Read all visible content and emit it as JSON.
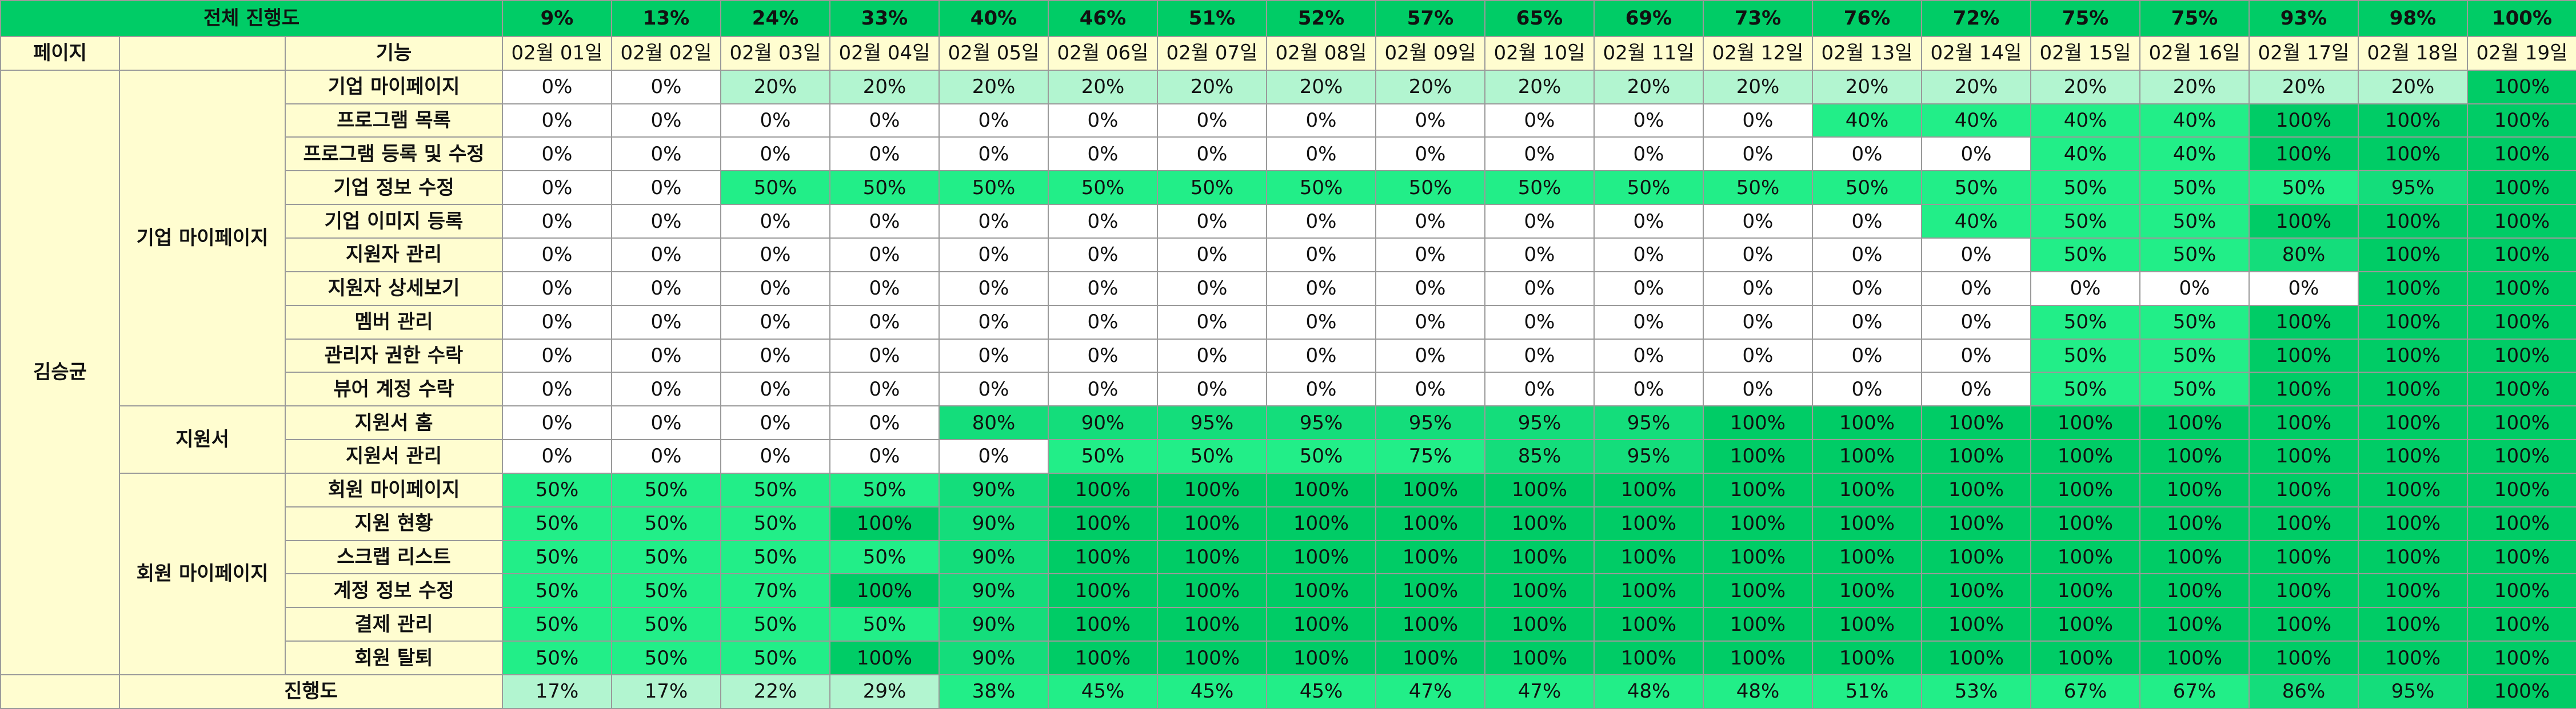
{
  "sheet": {
    "overall_label": "전체 진행도",
    "overall_values": [
      "9%",
      "13%",
      "24%",
      "33%",
      "40%",
      "46%",
      "51%",
      "52%",
      "57%",
      "65%",
      "69%",
      "73%",
      "76%",
      "72%",
      "75%",
      "75%",
      "93%",
      "98%",
      "100%"
    ],
    "header": {
      "page_label": "페이지",
      "feature_label": "기능",
      "dates": [
        "02월 01일",
        "02월 02일",
        "02월 03일",
        "02월 04일",
        "02월 05일",
        "02월 06일",
        "02월 07일",
        "02월 08일",
        "02월 09일",
        "02월 10일",
        "02월 11일",
        "02월 12일",
        "02월 13일",
        "02월 14일",
        "02월 15일",
        "02월 16일",
        "02월 17일",
        "02월 18일",
        "02월 19일"
      ]
    },
    "owner": "김승균",
    "groups": [
      {
        "name": "기업 마이페이지",
        "rows": [
          {
            "feature": "기업 마이페이지",
            "values": [
              "0%",
              "0%",
              "20%",
              "20%",
              "20%",
              "20%",
              "20%",
              "20%",
              "20%",
              "20%",
              "20%",
              "20%",
              "20%",
              "20%",
              "20%",
              "20%",
              "20%",
              "20%",
              "100%"
            ]
          },
          {
            "feature": "프로그램 목록",
            "values": [
              "0%",
              "0%",
              "0%",
              "0%",
              "0%",
              "0%",
              "0%",
              "0%",
              "0%",
              "0%",
              "0%",
              "0%",
              "40%",
              "40%",
              "40%",
              "40%",
              "100%",
              "100%",
              "100%"
            ]
          },
          {
            "feature": "프로그램 등록 및 수정",
            "values": [
              "0%",
              "0%",
              "0%",
              "0%",
              "0%",
              "0%",
              "0%",
              "0%",
              "0%",
              "0%",
              "0%",
              "0%",
              "0%",
              "0%",
              "40%",
              "40%",
              "100%",
              "100%",
              "100%"
            ]
          },
          {
            "feature": "기업 정보 수정",
            "values": [
              "0%",
              "0%",
              "50%",
              "50%",
              "50%",
              "50%",
              "50%",
              "50%",
              "50%",
              "50%",
              "50%",
              "50%",
              "50%",
              "50%",
              "50%",
              "50%",
              "50%",
              "95%",
              "100%"
            ]
          },
          {
            "feature": "기업 이미지 등록",
            "values": [
              "0%",
              "0%",
              "0%",
              "0%",
              "0%",
              "0%",
              "0%",
              "0%",
              "0%",
              "0%",
              "0%",
              "0%",
              "0%",
              "40%",
              "50%",
              "50%",
              "100%",
              "100%",
              "100%"
            ]
          },
          {
            "feature": "지원자 관리",
            "values": [
              "0%",
              "0%",
              "0%",
              "0%",
              "0%",
              "0%",
              "0%",
              "0%",
              "0%",
              "0%",
              "0%",
              "0%",
              "0%",
              "0%",
              "50%",
              "50%",
              "80%",
              "100%",
              "100%"
            ]
          },
          {
            "feature": "지원자 상세보기",
            "values": [
              "0%",
              "0%",
              "0%",
              "0%",
              "0%",
              "0%",
              "0%",
              "0%",
              "0%",
              "0%",
              "0%",
              "0%",
              "0%",
              "0%",
              "0%",
              "0%",
              "0%",
              "100%",
              "100%"
            ]
          },
          {
            "feature": "멤버 관리",
            "values": [
              "0%",
              "0%",
              "0%",
              "0%",
              "0%",
              "0%",
              "0%",
              "0%",
              "0%",
              "0%",
              "0%",
              "0%",
              "0%",
              "0%",
              "50%",
              "50%",
              "100%",
              "100%",
              "100%"
            ]
          },
          {
            "feature": "관리자 권한 수락",
            "values": [
              "0%",
              "0%",
              "0%",
              "0%",
              "0%",
              "0%",
              "0%",
              "0%",
              "0%",
              "0%",
              "0%",
              "0%",
              "0%",
              "0%",
              "50%",
              "50%",
              "100%",
              "100%",
              "100%"
            ]
          },
          {
            "feature": "뷰어 계정 수락",
            "values": [
              "0%",
              "0%",
              "0%",
              "0%",
              "0%",
              "0%",
              "0%",
              "0%",
              "0%",
              "0%",
              "0%",
              "0%",
              "0%",
              "0%",
              "50%",
              "50%",
              "100%",
              "100%",
              "100%"
            ]
          }
        ]
      },
      {
        "name": "지원서",
        "rows": [
          {
            "feature": "지원서 홈",
            "values": [
              "0%",
              "0%",
              "0%",
              "0%",
              "80%",
              "90%",
              "95%",
              "95%",
              "95%",
              "95%",
              "95%",
              "100%",
              "100%",
              "100%",
              "100%",
              "100%",
              "100%",
              "100%",
              "100%"
            ]
          },
          {
            "feature": "지원서 관리",
            "values": [
              "0%",
              "0%",
              "0%",
              "0%",
              "0%",
              "50%",
              "50%",
              "50%",
              "75%",
              "85%",
              "95%",
              "100%",
              "100%",
              "100%",
              "100%",
              "100%",
              "100%",
              "100%",
              "100%"
            ]
          }
        ]
      },
      {
        "name": "회원 마이페이지",
        "rows": [
          {
            "feature": "회원 마이페이지",
            "values": [
              "50%",
              "50%",
              "50%",
              "50%",
              "90%",
              "100%",
              "100%",
              "100%",
              "100%",
              "100%",
              "100%",
              "100%",
              "100%",
              "100%",
              "100%",
              "100%",
              "100%",
              "100%",
              "100%"
            ]
          },
          {
            "feature": "지원 현황",
            "values": [
              "50%",
              "50%",
              "50%",
              "100%",
              "90%",
              "100%",
              "100%",
              "100%",
              "100%",
              "100%",
              "100%",
              "100%",
              "100%",
              "100%",
              "100%",
              "100%",
              "100%",
              "100%",
              "100%"
            ]
          },
          {
            "feature": "스크랩 리스트",
            "values": [
              "50%",
              "50%",
              "50%",
              "50%",
              "90%",
              "100%",
              "100%",
              "100%",
              "100%",
              "100%",
              "100%",
              "100%",
              "100%",
              "100%",
              "100%",
              "100%",
              "100%",
              "100%",
              "100%"
            ]
          },
          {
            "feature": "계정 정보 수정",
            "values": [
              "50%",
              "50%",
              "70%",
              "100%",
              "90%",
              "100%",
              "100%",
              "100%",
              "100%",
              "100%",
              "100%",
              "100%",
              "100%",
              "100%",
              "100%",
              "100%",
              "100%",
              "100%",
              "100%"
            ]
          },
          {
            "feature": "결제 관리",
            "values": [
              "50%",
              "50%",
              "50%",
              "50%",
              "90%",
              "100%",
              "100%",
              "100%",
              "100%",
              "100%",
              "100%",
              "100%",
              "100%",
              "100%",
              "100%",
              "100%",
              "100%",
              "100%",
              "100%"
            ]
          },
          {
            "feature": "회원 탈퇴",
            "values": [
              "50%",
              "50%",
              "50%",
              "100%",
              "90%",
              "100%",
              "100%",
              "100%",
              "100%",
              "100%",
              "100%",
              "100%",
              "100%",
              "100%",
              "100%",
              "100%",
              "100%",
              "100%",
              "100%"
            ]
          }
        ]
      }
    ],
    "progress": {
      "label": "진행도",
      "values": [
        "17%",
        "17%",
        "22%",
        "29%",
        "38%",
        "45%",
        "45%",
        "45%",
        "47%",
        "47%",
        "48%",
        "48%",
        "51%",
        "53%",
        "67%",
        "67%",
        "86%",
        "95%",
        "100%"
      ]
    },
    "colors": {
      "header_green": "#00cc66",
      "label_yellow": "#fffdd0",
      "white_0pct": "#ffffff",
      "light_20pct": "#b2f5d0",
      "pale_low": "#9cf2c6",
      "mid_50pct": "#22ee88",
      "strong_90pct": "#14dd7b",
      "full_100pct": "#00cc66",
      "grid_border": "#9a9a9a"
    }
  }
}
